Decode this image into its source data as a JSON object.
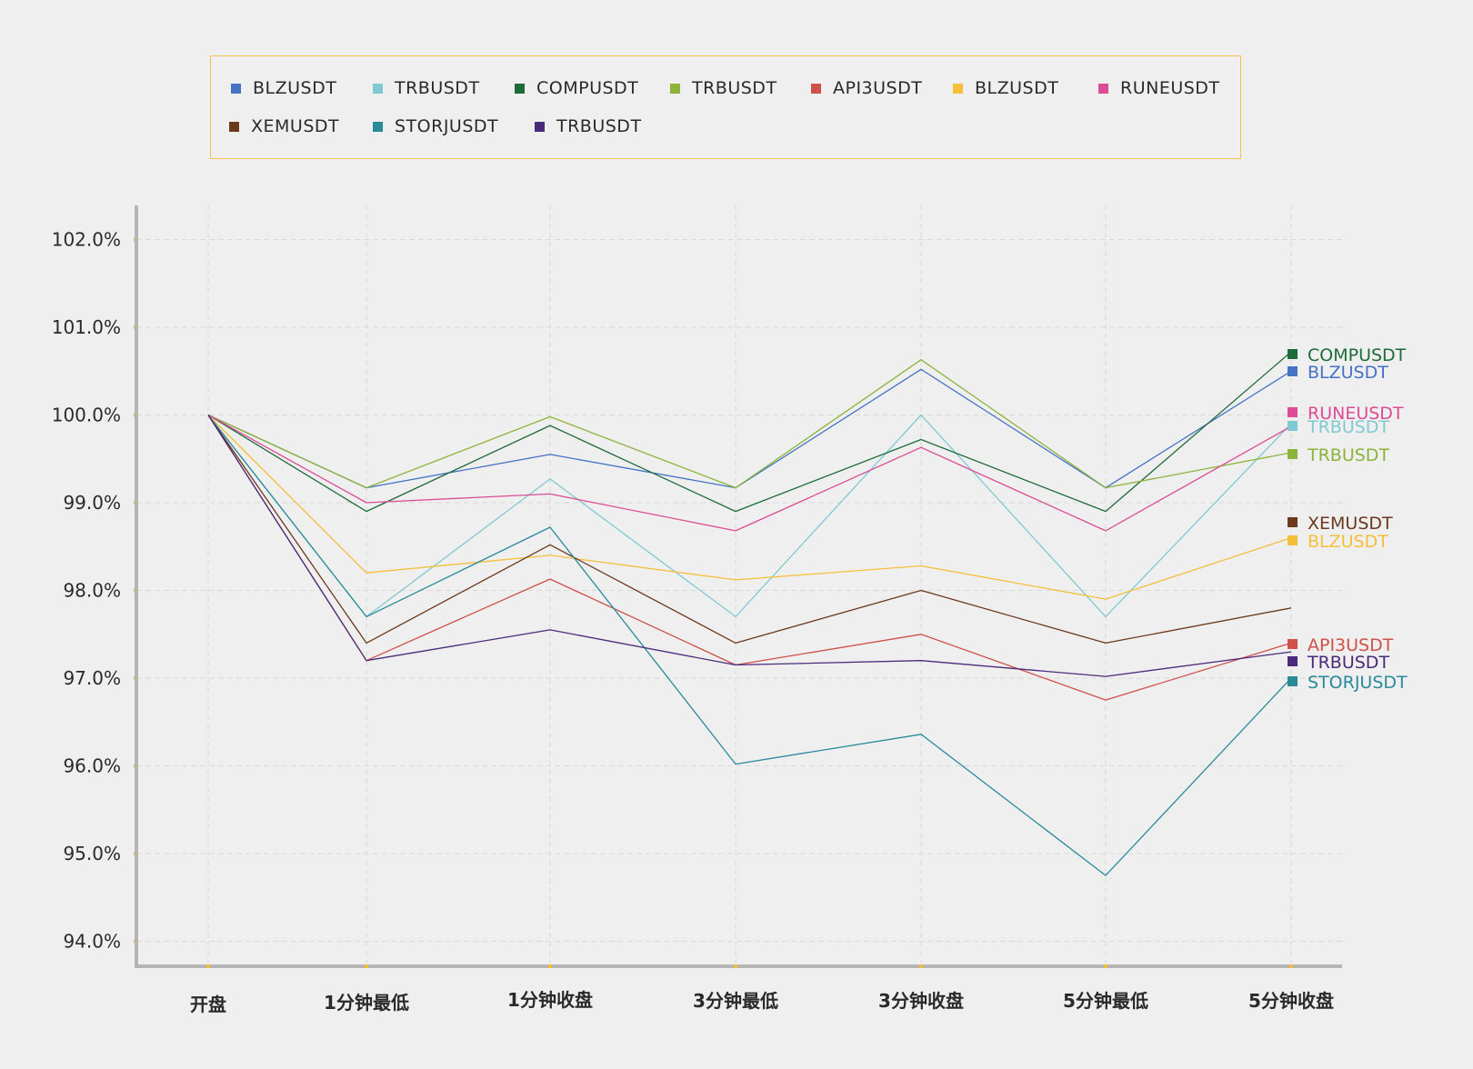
{
  "chart_data": {
    "type": "line",
    "categories": [
      "开盘",
      "1分钟最低",
      "1分钟收盘",
      "3分钟最低",
      "3分钟收盘",
      "5分钟最低",
      "5分钟收盘"
    ],
    "ylim": [
      93.7,
      102.9
    ],
    "yticks": [
      94.0,
      95.0,
      96.0,
      97.0,
      98.0,
      99.0,
      100.0,
      101.0,
      102.0
    ],
    "ytick_labels": [
      "94.0%",
      "95.0%",
      "96.0%",
      "97.0%",
      "98.0%",
      "99.0%",
      "100.0%",
      "101.0%",
      "102.0%"
    ],
    "grid": true,
    "legend_position": "top",
    "series": [
      {
        "name": "BLZUSDT",
        "color": "#4472c4",
        "values": [
          100.0,
          99.17,
          99.55,
          99.17,
          100.52,
          99.17,
          100.5
        ]
      },
      {
        "name": "TRBUSDT",
        "color": "#7fcad1",
        "values": [
          100.0,
          97.7,
          99.27,
          97.7,
          100.0,
          97.7,
          99.9
        ]
      },
      {
        "name": "COMPUSDT",
        "color": "#1e6b3a",
        "values": [
          100.0,
          98.9,
          99.88,
          98.9,
          99.72,
          98.9,
          100.72
        ]
      },
      {
        "name": "TRBUSDT",
        "color": "#8cb43a",
        "values": [
          100.0,
          99.17,
          99.98,
          99.17,
          100.63,
          99.17,
          99.57
        ]
      },
      {
        "name": "API3USDT",
        "color": "#d0504a",
        "values": [
          100.0,
          97.2,
          98.13,
          97.15,
          97.5,
          96.75,
          97.4
        ]
      },
      {
        "name": "BLZUSDT",
        "color": "#f5bf3a",
        "values": [
          100.0,
          98.2,
          98.4,
          98.12,
          98.28,
          97.9,
          98.6
        ]
      },
      {
        "name": "RUNEUSDT",
        "color": "#dc4c94",
        "values": [
          100.0,
          99.0,
          99.1,
          98.68,
          99.63,
          98.68,
          99.87
        ]
      },
      {
        "name": "XEMUSDT",
        "color": "#6b3a1e",
        "values": [
          100.0,
          97.4,
          98.52,
          97.4,
          98.0,
          97.4,
          97.8
        ]
      },
      {
        "name": "STORJUSDT",
        "color": "#2a8a9a",
        "values": [
          100.0,
          97.7,
          98.72,
          96.02,
          96.36,
          94.75,
          97.0
        ]
      },
      {
        "name": "TRBUSDT",
        "color": "#4a2a7a",
        "values": [
          100.0,
          97.2,
          97.55,
          97.15,
          97.2,
          97.02,
          97.3
        ]
      }
    ],
    "end_labels": [
      {
        "text": "COMPUSDT",
        "color": "#1e6b3a"
      },
      {
        "text": "BLZUSDT",
        "color": "#4472c4"
      },
      {
        "text": "RUNEUSDT",
        "color": "#dc4c94"
      },
      {
        "text": "TRBUSDT",
        "color": "#7fcad1"
      },
      {
        "text": "TRBUSDT",
        "color": "#8cb43a"
      },
      {
        "text": "XEMUSDT",
        "color": "#6b3a1e"
      },
      {
        "text": "BLZUSDT",
        "color": "#f5bf3a"
      },
      {
        "text": "API3USDT",
        "color": "#d0504a"
      },
      {
        "text": "TRBUSDT",
        "color": "#4a2a7a"
      },
      {
        "text": "STORJUSDT",
        "color": "#2a8a9a"
      }
    ]
  },
  "legend": {
    "items": [
      {
        "label": "BLZUSDT",
        "color": "#4472c4"
      },
      {
        "label": "TRBUSDT",
        "color": "#7fcad1"
      },
      {
        "label": "COMPUSDT",
        "color": "#1e6b3a"
      },
      {
        "label": "TRBUSDT",
        "color": "#8cb43a"
      },
      {
        "label": "API3USDT",
        "color": "#d0504a"
      },
      {
        "label": "BLZUSDT",
        "color": "#f5bf3a"
      },
      {
        "label": "RUNEUSDT",
        "color": "#dc4c94"
      },
      {
        "label": "XEMUSDT",
        "color": "#6b3a1e"
      },
      {
        "label": "STORJUSDT",
        "color": "#2a8a9a"
      },
      {
        "label": "TRBUSDT",
        "color": "#4a2a7a"
      }
    ]
  }
}
